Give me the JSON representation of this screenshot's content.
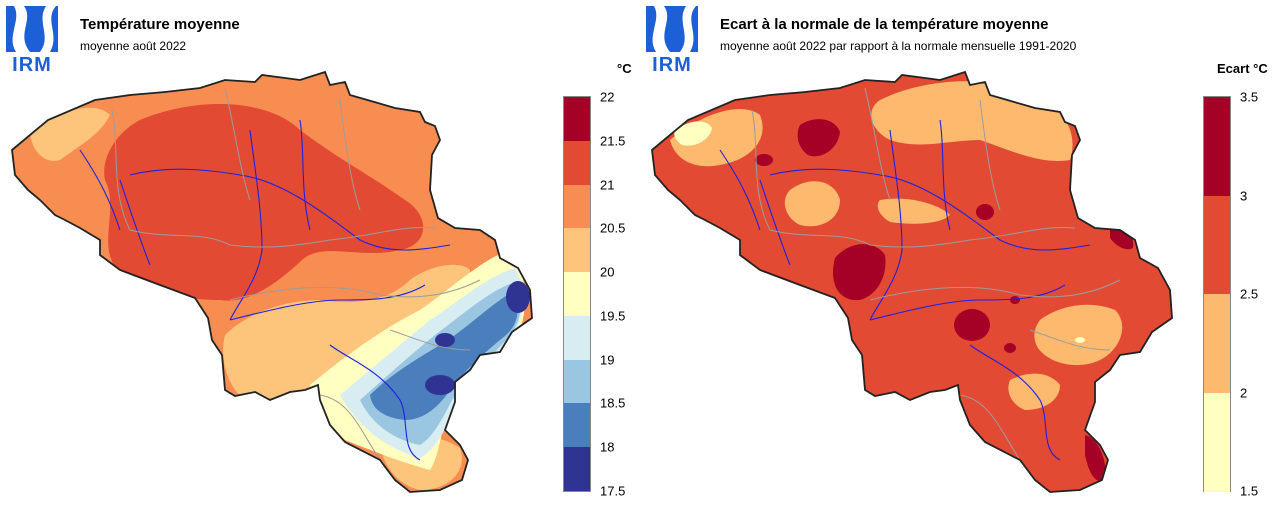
{
  "left_panel": {
    "logo_text": "IRM",
    "title": "Température moyenne",
    "subtitle": "moyenne août 2022",
    "unit": "°C",
    "legend": {
      "ticks": [
        "22",
        "21.5",
        "21",
        "20.5",
        "20",
        "19.5",
        "19",
        "18.5",
        "18",
        "17.5"
      ],
      "colors": [
        "#a50026",
        "#e34a33",
        "#f88d52",
        "#fdc47b",
        "#ffffc1",
        "#d8edf2",
        "#9ac6e2",
        "#4a7ebc",
        "#2f3391"
      ]
    },
    "map_colors": {
      "base": "#f88d52",
      "warm": "#e34a33",
      "mild": "#fdc47b",
      "cool": "#ffffc1",
      "cold1": "#d8edf2",
      "cold2": "#9ac6e2",
      "cold3": "#4a7ebc",
      "cold4": "#2f3391"
    }
  },
  "right_panel": {
    "logo_text": "IRM",
    "title": "Ecart à la normale de la température moyenne",
    "subtitle": "moyenne août 2022 par rapport à la normale mensuelle 1991-2020",
    "unit": "Ecart °C",
    "legend": {
      "ticks": [
        "3.5",
        "3",
        "2.5",
        "2",
        "1.5"
      ],
      "colors": [
        "#a50026",
        "#e34a33",
        "#fdb96e",
        "#ffffc1"
      ]
    },
    "map_colors": {
      "base": "#e34a33",
      "mild": "#fdb96e",
      "cool": "#ffffc1",
      "hot": "#a50026"
    }
  }
}
